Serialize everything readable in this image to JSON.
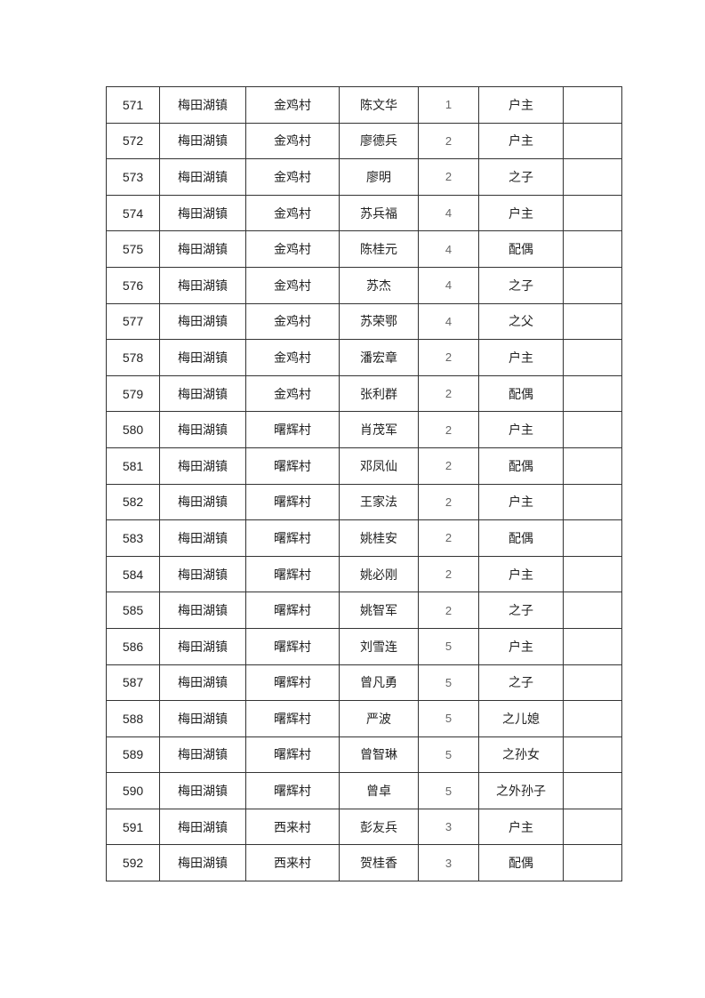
{
  "rows": [
    [
      "571",
      "梅田湖镇",
      "金鸡村",
      "陈文华",
      "1",
      "户主",
      ""
    ],
    [
      "572",
      "梅田湖镇",
      "金鸡村",
      "廖德兵",
      "2",
      "户主",
      ""
    ],
    [
      "573",
      "梅田湖镇",
      "金鸡村",
      "廖明",
      "2",
      "之子",
      ""
    ],
    [
      "574",
      "梅田湖镇",
      "金鸡村",
      "苏兵福",
      "4",
      "户主",
      ""
    ],
    [
      "575",
      "梅田湖镇",
      "金鸡村",
      "陈桂元",
      "4",
      "配偶",
      ""
    ],
    [
      "576",
      "梅田湖镇",
      "金鸡村",
      "苏杰",
      "4",
      "之子",
      ""
    ],
    [
      "577",
      "梅田湖镇",
      "金鸡村",
      "苏荣鄂",
      "4",
      "之父",
      ""
    ],
    [
      "578",
      "梅田湖镇",
      "金鸡村",
      "潘宏章",
      "2",
      "户主",
      ""
    ],
    [
      "579",
      "梅田湖镇",
      "金鸡村",
      "张利群",
      "2",
      "配偶",
      ""
    ],
    [
      "580",
      "梅田湖镇",
      "曙辉村",
      "肖茂军",
      "2",
      "户主",
      ""
    ],
    [
      "581",
      "梅田湖镇",
      "曙辉村",
      "邓凤仙",
      "2",
      "配偶",
      ""
    ],
    [
      "582",
      "梅田湖镇",
      "曙辉村",
      "王家法",
      "2",
      "户主",
      ""
    ],
    [
      "583",
      "梅田湖镇",
      "曙辉村",
      "姚桂安",
      "2",
      "配偶",
      ""
    ],
    [
      "584",
      "梅田湖镇",
      "曙辉村",
      "姚必刚",
      "2",
      "户主",
      ""
    ],
    [
      "585",
      "梅田湖镇",
      "曙辉村",
      "姚智军",
      "2",
      "之子",
      ""
    ],
    [
      "586",
      "梅田湖镇",
      "曙辉村",
      "刘雪连",
      "5",
      "户主",
      ""
    ],
    [
      "587",
      "梅田湖镇",
      "曙辉村",
      "曾凡勇",
      "5",
      "之子",
      ""
    ],
    [
      "588",
      "梅田湖镇",
      "曙辉村",
      "严波",
      "5",
      "之儿媳",
      ""
    ],
    [
      "589",
      "梅田湖镇",
      "曙辉村",
      "曾智琳",
      "5",
      "之孙女",
      ""
    ],
    [
      "590",
      "梅田湖镇",
      "曙辉村",
      "曾卓",
      "5",
      "之外孙子",
      ""
    ],
    [
      "591",
      "梅田湖镇",
      "西来村",
      "彭友兵",
      "3",
      "户主",
      ""
    ],
    [
      "592",
      "梅田湖镇",
      "西来村",
      "贺桂香",
      "3",
      "配偶",
      ""
    ]
  ]
}
